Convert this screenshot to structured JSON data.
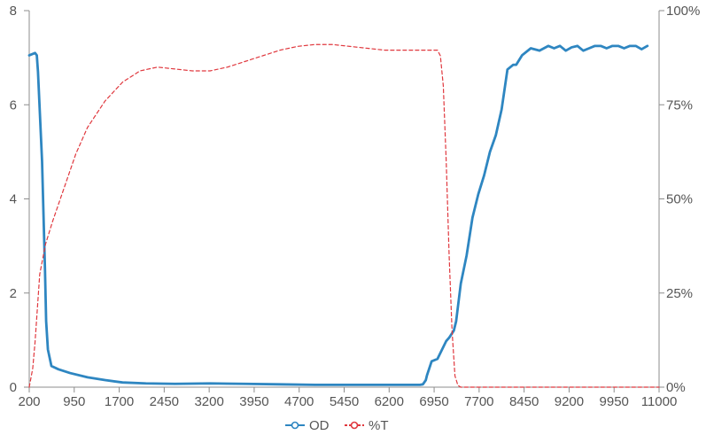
{
  "chart_data": {
    "type": "line",
    "title": "",
    "xlabel": "",
    "ylabel": "",
    "y2label": "",
    "grid": false,
    "legend_position": "bottom-center",
    "x_ticks": [
      "200",
      "950",
      "1700",
      "2450",
      "3200",
      "3950",
      "4700",
      "5450",
      "6200",
      "6950",
      "7700",
      "8450",
      "9200",
      "9950",
      "11000"
    ],
    "xlim": [
      200,
      11000
    ],
    "y_ticks": [
      "0",
      "2",
      "4",
      "6",
      "8"
    ],
    "ylim": [
      0,
      8
    ],
    "y2_ticks": [
      "0%",
      "25%",
      "50%",
      "75%",
      "100%"
    ],
    "y2lim": [
      0,
      100
    ],
    "series": [
      {
        "name": "OD",
        "axis": "left",
        "color": "#2e86c1",
        "style": "solid",
        "x": [
          200,
          300,
          330,
          350,
          420,
          470,
          490,
          520,
          580,
          700,
          900,
          1200,
          1500,
          1800,
          2200,
          2700,
          3300,
          3900,
          4500,
          5100,
          5700,
          6300,
          6900,
          6950,
          7000,
          7020,
          7100,
          7200,
          7350,
          7400,
          7480,
          7520,
          7600,
          7700,
          7800,
          7900,
          8000,
          8100,
          8200,
          8300,
          8400,
          8500,
          8550,
          8650,
          8800,
          8950,
          9100,
          9200,
          9300,
          9400,
          9500,
          9600,
          9700,
          9800,
          9900,
          10000,
          10100,
          10200,
          10300,
          10400,
          10500,
          10600,
          10700,
          10800
        ],
        "y": [
          7.05,
          7.1,
          7.05,
          6.7,
          4.8,
          2.5,
          1.4,
          0.8,
          0.45,
          0.38,
          0.3,
          0.21,
          0.15,
          0.1,
          0.08,
          0.07,
          0.08,
          0.07,
          0.06,
          0.05,
          0.05,
          0.05,
          0.05,
          0.06,
          0.15,
          0.25,
          0.55,
          0.6,
          0.98,
          1.05,
          1.2,
          1.4,
          2.2,
          2.8,
          3.6,
          4.1,
          4.5,
          5.0,
          5.35,
          5.9,
          6.75,
          6.85,
          6.85,
          7.05,
          7.2,
          7.15,
          7.25,
          7.2,
          7.25,
          7.15,
          7.22,
          7.25,
          7.15,
          7.2,
          7.25,
          7.25,
          7.2,
          7.25,
          7.25,
          7.2,
          7.25,
          7.25,
          7.18,
          7.25
        ]
      },
      {
        "name": "%T",
        "axis": "right",
        "color": "#e0383e",
        "style": "dashed",
        "x": [
          200,
          260,
          300,
          380,
          480,
          600,
          800,
          1000,
          1200,
          1500,
          1800,
          2100,
          2400,
          2700,
          3000,
          3300,
          3600,
          3900,
          4200,
          4500,
          4800,
          5100,
          5400,
          5700,
          6000,
          6300,
          6600,
          6900,
          7200,
          7250,
          7300,
          7350,
          7400,
          7450,
          7500,
          7550,
          7600,
          7700,
          8000,
          9000,
          10000,
          11000
        ],
        "y": [
          0,
          5,
          12,
          30,
          38,
          44,
          53,
          62,
          69,
          76,
          81,
          84,
          85,
          84.5,
          84,
          84,
          85,
          86.5,
          88,
          89.5,
          90.5,
          91,
          91,
          90.5,
          90,
          89.5,
          89.5,
          89.5,
          89.5,
          88,
          80,
          60,
          35,
          15,
          3,
          0.5,
          0,
          0,
          0,
          0,
          0,
          0
        ]
      }
    ]
  }
}
